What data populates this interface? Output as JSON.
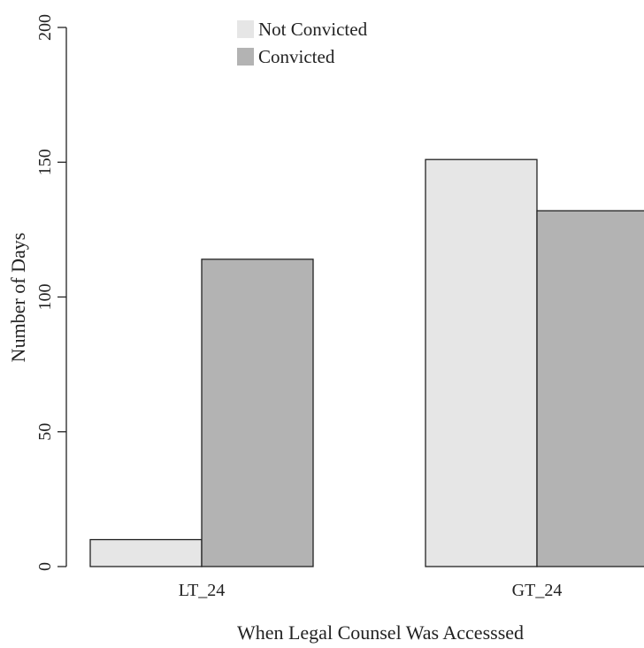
{
  "chart_data": {
    "type": "bar",
    "title": "",
    "xlabel": "When Legal Counsel Was Accesssed",
    "ylabel": "Number of Days",
    "categories": [
      "LT_24",
      "GT_24"
    ],
    "series": [
      {
        "name": "Not Convicted",
        "values": [
          10,
          151
        ],
        "color": "#e6e6e6"
      },
      {
        "name": "Convicted",
        "values": [
          114,
          132
        ],
        "color": "#b3b3b3"
      }
    ],
    "ylim": [
      0,
      200
    ],
    "yticks": [
      "0",
      "50",
      "100",
      "150",
      "200"
    ],
    "legend_position": "top-left",
    "grid": false
  },
  "colors": {
    "bar_outline": "#222222",
    "axis": "#222222"
  }
}
